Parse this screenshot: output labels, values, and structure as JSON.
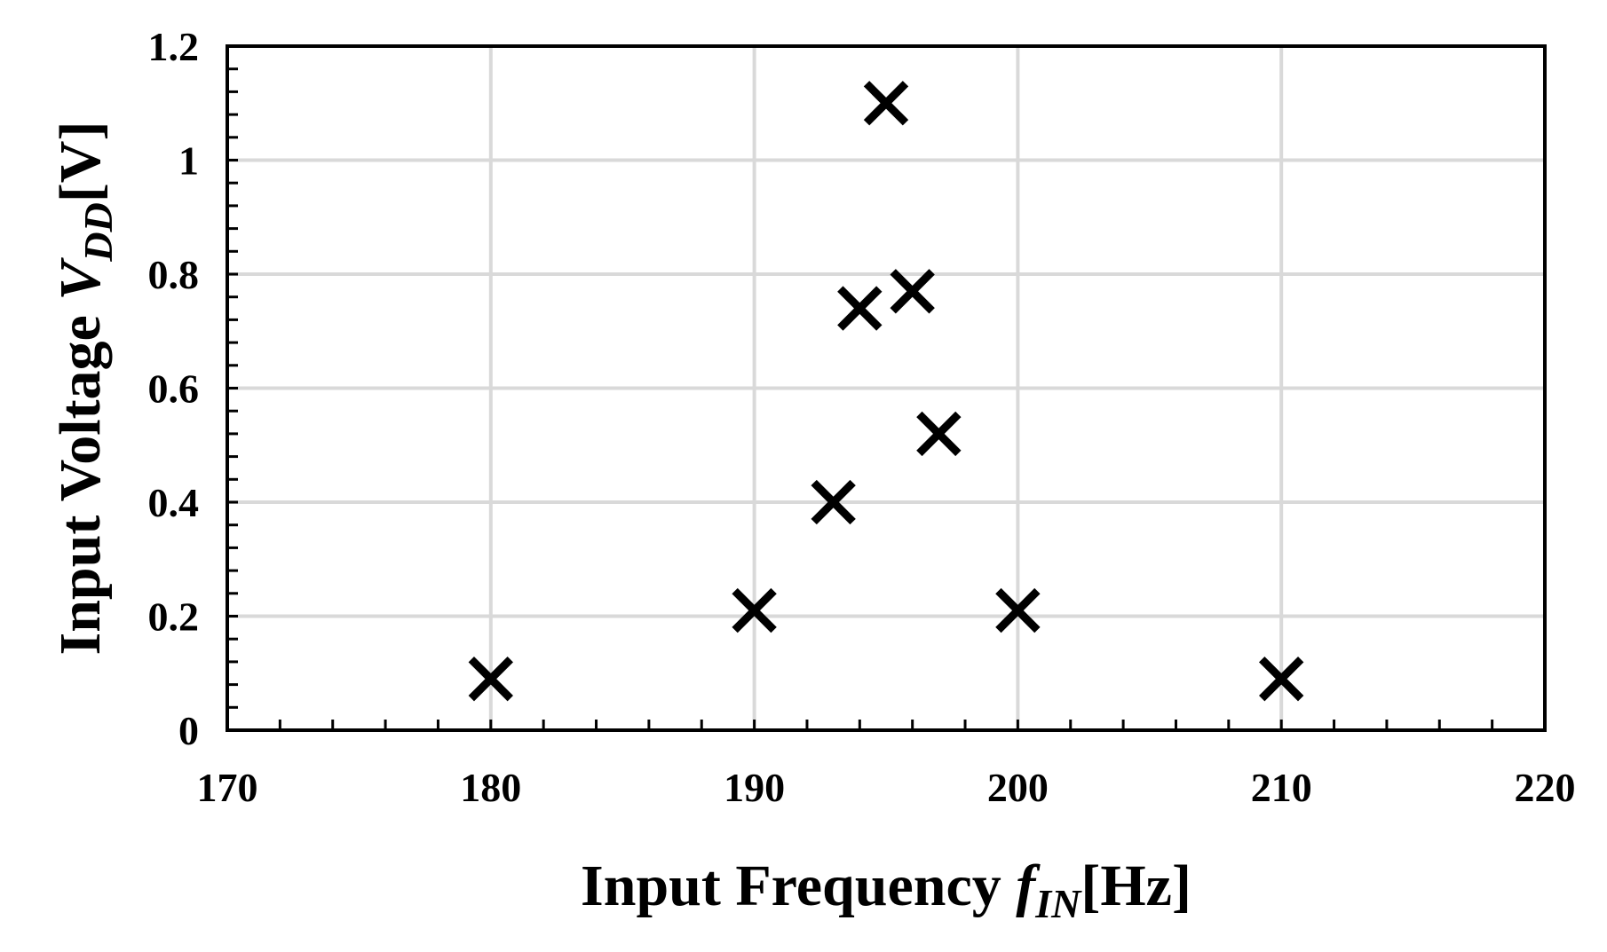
{
  "chart_data": {
    "type": "scatter",
    "xlabel_parts": {
      "pre": "Input  Frequency ",
      "var": "f",
      "sub": "IN",
      "post": "[Hz]"
    },
    "ylabel_parts": {
      "pre": "Input  Voltage ",
      "var": "V",
      "sub": "DD",
      "post": "[V]"
    },
    "xlim": [
      170,
      220
    ],
    "ylim": [
      0,
      1.2
    ],
    "x_ticks": [
      170,
      180,
      190,
      200,
      210,
      220
    ],
    "x_tick_labels": [
      "170",
      "180",
      "190",
      "200",
      "210",
      "220"
    ],
    "y_ticks": [
      0,
      0.2,
      0.4,
      0.6,
      0.8,
      1,
      1.2
    ],
    "y_tick_labels": [
      "0",
      "0.2",
      "0.4",
      "0.6",
      "0.8",
      "1",
      "1.2"
    ],
    "grid": true,
    "marker": "x",
    "marker_color": "#000000",
    "grid_color": "#d9d9d9",
    "points": [
      {
        "x": 180,
        "y": 0.09
      },
      {
        "x": 190,
        "y": 0.21
      },
      {
        "x": 193,
        "y": 0.4
      },
      {
        "x": 194,
        "y": 0.74
      },
      {
        "x": 195,
        "y": 1.1
      },
      {
        "x": 196,
        "y": 0.77
      },
      {
        "x": 197,
        "y": 0.52
      },
      {
        "x": 200,
        "y": 0.21
      },
      {
        "x": 210,
        "y": 0.09
      }
    ]
  }
}
